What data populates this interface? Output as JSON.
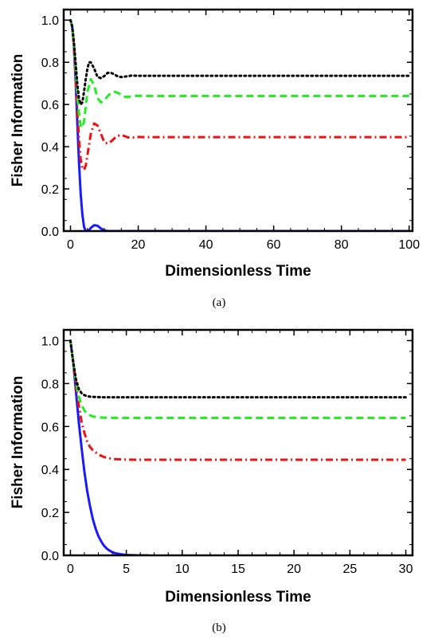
{
  "captions": [
    "(a)",
    "(b)"
  ],
  "colors": {
    "blue_solid": "#1a1aff",
    "red_dashdot": "#ee1111",
    "green_dashed": "#22ee22",
    "black_dotted": "#000000"
  },
  "chart_data": [
    {
      "type": "line",
      "xlabel": "Dimensionless Time",
      "ylabel": "Fisher Information",
      "xlim": [
        -2,
        101
      ],
      "ylim": [
        0,
        1.05
      ],
      "xticks": [
        0,
        20,
        40,
        60,
        80,
        100
      ],
      "yticks": [
        0.0,
        0.2,
        0.4,
        0.6,
        0.8,
        1.0
      ],
      "grid": false,
      "series": [
        {
          "style": "solid",
          "color": "#1a1aff",
          "x": [
            0,
            0.5,
            1,
            1.5,
            2,
            2.5,
            3,
            3.5,
            4,
            4.5,
            5,
            5.5,
            6,
            7,
            8,
            9,
            10,
            11,
            12,
            15,
            20,
            100
          ],
          "y": [
            1.0,
            0.97,
            0.88,
            0.72,
            0.52,
            0.33,
            0.18,
            0.08,
            0.02,
            0.0,
            0.0,
            0.005,
            0.015,
            0.028,
            0.025,
            0.012,
            0.003,
            0.0,
            0.0,
            0.0,
            0.0,
            0.0
          ]
        },
        {
          "style": "dashdot",
          "color": "#ee1111",
          "x": [
            0,
            0.5,
            1,
            1.5,
            2,
            2.5,
            3,
            3.5,
            4,
            4.5,
            5,
            6,
            7,
            8,
            9,
            10,
            11,
            12,
            13,
            14,
            15,
            16,
            17,
            18,
            19,
            20,
            22,
            25,
            30,
            100
          ],
          "y": [
            1.0,
            0.97,
            0.88,
            0.74,
            0.58,
            0.44,
            0.34,
            0.3,
            0.29,
            0.31,
            0.36,
            0.46,
            0.51,
            0.5,
            0.46,
            0.42,
            0.415,
            0.425,
            0.44,
            0.452,
            0.455,
            0.45,
            0.444,
            0.442,
            0.444,
            0.446,
            0.445,
            0.445,
            0.445,
            0.445
          ]
        },
        {
          "style": "dashed",
          "color": "#22ee22",
          "x": [
            0,
            0.5,
            1,
            1.5,
            2,
            2.5,
            3,
            3.5,
            4,
            4.5,
            5,
            6,
            7,
            8,
            9,
            10,
            11,
            12,
            13,
            14,
            15,
            16,
            17,
            18,
            20,
            25,
            100
          ],
          "y": [
            1.0,
            0.97,
            0.89,
            0.78,
            0.66,
            0.56,
            0.5,
            0.49,
            0.52,
            0.59,
            0.66,
            0.72,
            0.69,
            0.63,
            0.61,
            0.62,
            0.64,
            0.655,
            0.66,
            0.655,
            0.645,
            0.637,
            0.636,
            0.639,
            0.641,
            0.64,
            0.64
          ]
        },
        {
          "style": "dotted",
          "color": "#000000",
          "x": [
            0,
            0.5,
            1,
            1.5,
            2,
            2.5,
            3,
            3.5,
            4,
            4.5,
            5,
            5.5,
            6,
            7,
            8,
            9,
            10,
            11,
            12,
            13,
            14,
            15,
            16,
            18,
            20,
            25,
            100
          ],
          "y": [
            1.0,
            0.97,
            0.9,
            0.8,
            0.7,
            0.63,
            0.6,
            0.61,
            0.66,
            0.72,
            0.77,
            0.8,
            0.8,
            0.77,
            0.73,
            0.725,
            0.735,
            0.75,
            0.75,
            0.742,
            0.733,
            0.73,
            0.732,
            0.737,
            0.736,
            0.736,
            0.736
          ]
        }
      ]
    },
    {
      "type": "line",
      "xlabel": "Dimensionless Time",
      "ylabel": "Fisher Information",
      "xlim": [
        -0.6,
        30.6
      ],
      "ylim": [
        0,
        1.05
      ],
      "xticks": [
        0,
        5,
        10,
        15,
        20,
        25,
        30
      ],
      "yticks": [
        0.0,
        0.2,
        0.4,
        0.6,
        0.8,
        1.0
      ],
      "grid": false,
      "series": [
        {
          "style": "solid",
          "color": "#1a1aff",
          "x": [
            0,
            0.25,
            0.5,
            0.75,
            1,
            1.25,
            1.5,
            1.75,
            2,
            2.25,
            2.5,
            2.75,
            3,
            3.25,
            3.5,
            3.75,
            4,
            4.5,
            5,
            5.5,
            6,
            7
          ],
          "y": [
            1.0,
            0.9,
            0.76,
            0.62,
            0.5,
            0.39,
            0.3,
            0.23,
            0.17,
            0.125,
            0.09,
            0.065,
            0.045,
            0.032,
            0.022,
            0.015,
            0.01,
            0.005,
            0.002,
            0.001,
            0.0,
            0.0
          ]
        },
        {
          "style": "dashdot",
          "color": "#ee1111",
          "x": [
            0,
            0.25,
            0.5,
            0.75,
            1,
            1.25,
            1.5,
            1.75,
            2,
            2.5,
            3,
            3.5,
            4,
            5,
            6,
            8,
            30
          ],
          "y": [
            1.0,
            0.9,
            0.79,
            0.7,
            0.62,
            0.57,
            0.53,
            0.505,
            0.49,
            0.47,
            0.458,
            0.452,
            0.448,
            0.446,
            0.445,
            0.445,
            0.445
          ]
        },
        {
          "style": "dashed",
          "color": "#22ee22",
          "x": [
            0,
            0.25,
            0.5,
            0.75,
            1,
            1.25,
            1.5,
            1.75,
            2,
            2.5,
            3,
            4,
            5,
            30
          ],
          "y": [
            1.0,
            0.9,
            0.81,
            0.74,
            0.7,
            0.675,
            0.66,
            0.652,
            0.647,
            0.643,
            0.641,
            0.64,
            0.64,
            0.64
          ]
        },
        {
          "style": "dotted",
          "color": "#000000",
          "x": [
            0,
            0.25,
            0.5,
            0.75,
            1,
            1.25,
            1.5,
            1.75,
            2,
            2.5,
            3,
            4,
            30
          ],
          "y": [
            1.0,
            0.9,
            0.82,
            0.775,
            0.755,
            0.746,
            0.741,
            0.739,
            0.738,
            0.737,
            0.736,
            0.736,
            0.736
          ]
        }
      ]
    }
  ]
}
